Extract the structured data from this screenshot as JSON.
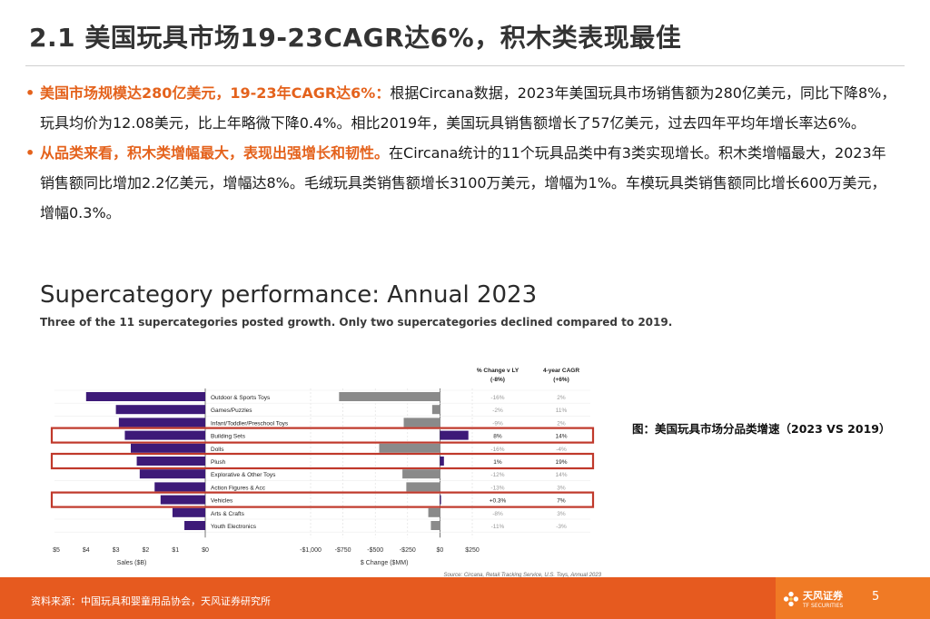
{
  "slide": {
    "title": "2.1 美国玩具市场19-23CAGR达6%，积木类表现最佳",
    "bullets": [
      {
        "highlight": "美国市场规模达280亿美元，19-23年CAGR达6%：",
        "text": "根据Circana数据，2023年美国玩具市场销售额为280亿美元，同比下降8%，玩具均价为12.08美元，比上年略微下降0.4%。相比2019年，美国玩具销售额增长了57亿美元，过去四年平均年增长率达6%。"
      },
      {
        "highlight": "从品类来看，积木类增幅最大，表现出强增长和韧性。",
        "text": "在Circana统计的11个玩具品类中有3类实现增长。积木类增幅最大，2023年销售额同比增加2.2亿美元，增幅达8%。毛绒玩具类销售额增长3100万美元，增幅为1%。车模玩具类销售额同比增长600万美元，增幅0.3%。"
      }
    ],
    "caption": "图：美国玩具市场分品类增速（2023 VS 2019）",
    "footer": {
      "source": "资料来源：中国玩具和婴童用品协会，天风证券研究所",
      "page": "5",
      "logo_cn": "天风证券",
      "logo_en": "TF SECURITIES"
    }
  },
  "figure": {
    "title": "Supercategory performance: Annual 2023",
    "subtitle": "Three of the 11 supercategories posted growth. Only two supercategories declined compared to 2019.",
    "col_chg_label": "% Change v LY",
    "col_chg_total": "(-8%)",
    "col_cagr_label": "4-year CAGR",
    "col_cagr_total": "(+6%)",
    "sales_axis_label": "Sales ($B)",
    "change_axis_label": "$ Change ($MM)",
    "source": "Source: Circana, Retail Tracking Service, U.S. Toys, Annual 2023"
  },
  "chart_data": {
    "type": "bar",
    "categories": [
      "Outdoor & Sports Toys",
      "Games/Puzzles",
      "Infant/Toddler/Preschool Toys",
      "Building Sets",
      "Dolls",
      "Plush",
      "Explorative & Other Toys",
      "Action Figures & Acc",
      "Vehicles",
      "Arts & Crafts",
      "Youth Electronics"
    ],
    "series": [
      {
        "name": "Sales ($B)",
        "values": [
          4.0,
          3.0,
          2.9,
          2.7,
          2.5,
          2.3,
          2.2,
          1.7,
          1.5,
          1.1,
          0.7
        ]
      },
      {
        "name": "$ Change ($MM)",
        "values": [
          -780,
          -60,
          -280,
          220,
          -470,
          31,
          -290,
          -260,
          6,
          -90,
          -70
        ]
      },
      {
        "name": "% Change v LY",
        "values": [
          "-16%",
          "-2%",
          "-9%",
          "8%",
          "-16%",
          "1%",
          "-12%",
          "-13%",
          "+0.3%",
          "-8%",
          "-11%"
        ]
      },
      {
        "name": "4-year CAGR",
        "values": [
          "2%",
          "11%",
          "2%",
          "14%",
          "-4%",
          "19%",
          "14%",
          "3%",
          "7%",
          "3%",
          "-3%"
        ]
      }
    ],
    "highlighted": [
      "Building Sets",
      "Plush",
      "Vehicles"
    ],
    "sales_ticks": [
      "$5",
      "$4",
      "$3",
      "$2",
      "$1",
      "$0"
    ],
    "sales_xlim": [
      5,
      0
    ],
    "change_ticks": [
      "-$1,000",
      "-$750",
      "-$500",
      "-$250",
      "$0",
      "$250"
    ],
    "change_xlim": [
      -1000,
      250
    ],
    "bar_color": "#3d1a78",
    "negative_color": "#8a8a8a",
    "highlight_color": "#c0392b"
  }
}
